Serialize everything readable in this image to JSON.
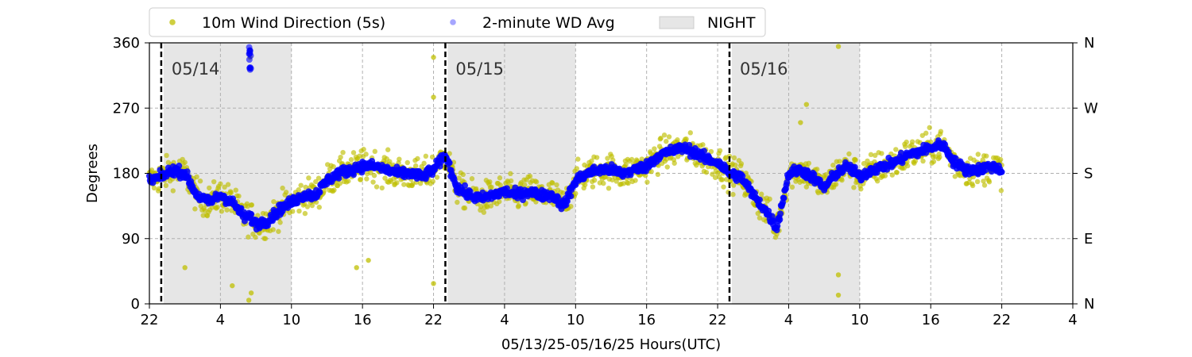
{
  "chart_data": {
    "type": "scatter",
    "xlabel": "05/13/25-05/16/25  Hours(UTC)",
    "ylabel": "Degrees",
    "x_ticks": [
      "22",
      "4",
      "10",
      "16",
      "22",
      "4",
      "10",
      "16",
      "22",
      "4",
      "10",
      "16",
      "22",
      "4"
    ],
    "x_tick_hours": [
      0,
      6,
      12,
      18,
      24,
      30,
      36,
      42,
      48,
      54,
      60,
      66,
      72,
      78
    ],
    "xlim_hours": [
      0,
      78
    ],
    "ylim": [
      0,
      360
    ],
    "y_ticks": [
      0,
      90,
      180,
      270,
      360
    ],
    "right_ticks": [
      {
        "value": 0,
        "label": "N"
      },
      {
        "value": 90,
        "label": "E"
      },
      {
        "value": 180,
        "label": "S"
      },
      {
        "value": 270,
        "label": "W"
      },
      {
        "value": 360,
        "label": "N"
      }
    ],
    "grid": true,
    "legend_position": "top-left",
    "legend": [
      {
        "label": "10m Wind Direction (5s)",
        "marker": "circle",
        "color": "#bfbf00"
      },
      {
        "label": "2-minute WD Avg",
        "marker": "circle",
        "color": "#0000ff"
      },
      {
        "label": "NIGHT",
        "marker": "patch",
        "color": "#e6e6e6"
      }
    ],
    "night_periods": [
      [
        1.2,
        12.0
      ],
      [
        25.2,
        36.0
      ],
      [
        49.2,
        60.0
      ]
    ],
    "day_markers": [
      {
        "x": 1.0,
        "label": "05/14"
      },
      {
        "x": 25.0,
        "label": "05/15"
      },
      {
        "x": 49.0,
        "label": "05/16"
      }
    ],
    "series": [
      {
        "name": "10m Wind Direction (5s)",
        "color": "#bfbf00",
        "x": [
          0,
          1,
          2,
          3,
          4,
          5,
          6,
          7,
          8,
          8.5,
          9,
          10,
          11,
          12,
          13,
          14,
          15,
          16,
          17,
          18,
          19,
          20,
          21,
          22,
          23,
          24,
          25,
          26,
          27,
          28,
          29,
          30,
          31,
          32,
          33,
          34,
          35,
          36,
          37,
          38,
          39,
          40,
          41,
          42,
          43,
          44,
          45,
          46,
          47,
          48,
          49,
          50,
          51,
          52,
          53,
          54,
          55,
          56,
          57,
          58,
          59,
          60,
          61,
          62,
          63,
          64,
          65,
          66,
          67,
          68,
          69,
          70,
          71,
          72
        ],
        "values": [
          170,
          175,
          185,
          180,
          150,
          140,
          150,
          140,
          120,
          120,
          110,
          115,
          130,
          140,
          150,
          150,
          170,
          180,
          185,
          190,
          190,
          185,
          180,
          180,
          175,
          185,
          205,
          160,
          150,
          145,
          150,
          155,
          150,
          155,
          150,
          150,
          135,
          170,
          180,
          185,
          185,
          180,
          185,
          190,
          205,
          210,
          215,
          210,
          200,
          195,
          180,
          175,
          150,
          130,
          105,
          180,
          185,
          175,
          160,
          180,
          190,
          175,
          185,
          190,
          195,
          205,
          210,
          215,
          220,
          195,
          185,
          185,
          190,
          185
        ]
      },
      {
        "name": "2-minute WD Avg",
        "color": "#0000ff",
        "x": [
          0,
          1,
          2,
          3,
          4,
          5,
          6,
          7,
          8,
          8.5,
          9,
          10,
          11,
          12,
          13,
          14,
          15,
          16,
          17,
          18,
          19,
          20,
          21,
          22,
          23,
          24,
          25,
          26,
          27,
          28,
          29,
          30,
          31,
          32,
          33,
          34,
          35,
          36,
          37,
          38,
          39,
          40,
          41,
          42,
          43,
          44,
          45,
          46,
          47,
          48,
          49,
          50,
          51,
          52,
          53,
          54,
          55,
          56,
          57,
          58,
          59,
          60,
          61,
          62,
          63,
          64,
          65,
          66,
          67,
          68,
          69,
          70,
          71,
          72
        ],
        "values": [
          170,
          175,
          185,
          180,
          150,
          140,
          150,
          140,
          120,
          120,
          110,
          115,
          130,
          140,
          150,
          150,
          170,
          180,
          185,
          190,
          190,
          185,
          180,
          180,
          175,
          185,
          205,
          160,
          150,
          145,
          150,
          155,
          150,
          155,
          150,
          150,
          135,
          170,
          180,
          185,
          185,
          180,
          185,
          190,
          205,
          210,
          215,
          210,
          200,
          195,
          180,
          175,
          150,
          130,
          105,
          180,
          185,
          175,
          160,
          180,
          190,
          175,
          185,
          190,
          195,
          205,
          210,
          215,
          220,
          195,
          185,
          185,
          190,
          185
        ]
      }
    ],
    "outliers": [
      {
        "x": 8.5,
        "y": 350
      },
      {
        "x": 8.5,
        "y": 340
      },
      {
        "x": 8.5,
        "y": 325
      },
      {
        "x": 8.4,
        "y": 5
      },
      {
        "x": 8.6,
        "y": 15
      },
      {
        "x": 7.0,
        "y": 25
      },
      {
        "x": 24.0,
        "y": 340
      },
      {
        "x": 24.0,
        "y": 285
      },
      {
        "x": 24.0,
        "y": 28
      },
      {
        "x": 58.2,
        "y": 355
      },
      {
        "x": 58.2,
        "y": 40
      },
      {
        "x": 58.2,
        "y": 12
      },
      {
        "x": 3.0,
        "y": 50
      },
      {
        "x": 18.5,
        "y": 60
      },
      {
        "x": 17.5,
        "y": 50
      },
      {
        "x": 55.5,
        "y": 275
      },
      {
        "x": 55.0,
        "y": 250
      }
    ]
  }
}
